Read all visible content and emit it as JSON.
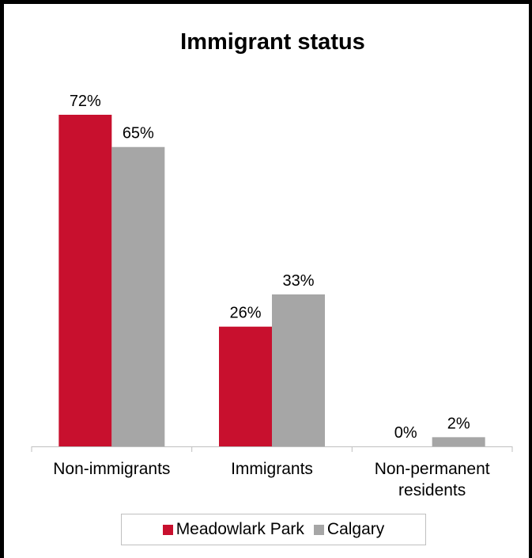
{
  "chart_data": {
    "type": "bar",
    "title": "Immigrant status",
    "categories": [
      [
        "Non-immigrants"
      ],
      [
        "Immigrants"
      ],
      [
        "Non-permanent",
        "residents"
      ]
    ],
    "series": [
      {
        "name": "Meadowlark Park",
        "color": "#c8102e",
        "values": [
          72,
          26,
          0
        ],
        "labels": [
          "72%",
          "26%",
          "0%"
        ]
      },
      {
        "name": "Calgary",
        "color": "#a6a6a6",
        "values": [
          65,
          33,
          2
        ],
        "labels": [
          "65%",
          "33%",
          "2%"
        ]
      }
    ],
    "ylim": [
      0,
      80
    ],
    "grid": false,
    "legend_position": "bottom",
    "xlabel": "",
    "ylabel": ""
  },
  "colors": {
    "axis": "#bfbfbf",
    "frame": "#000000"
  }
}
